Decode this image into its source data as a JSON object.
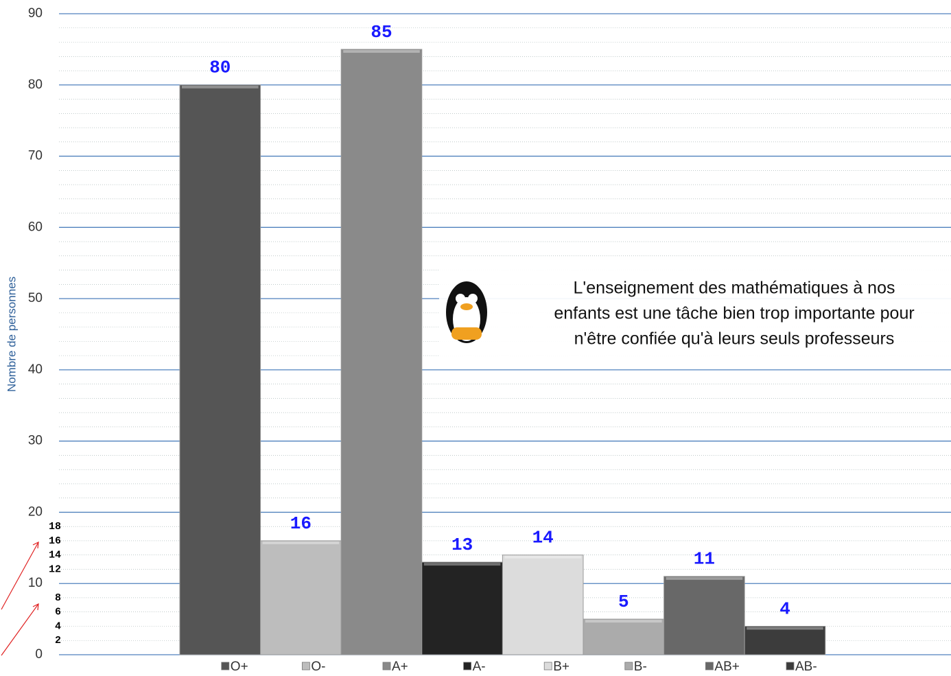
{
  "chart_data": {
    "type": "bar",
    "y_label": "Nombre de personnes",
    "categories": [
      "O+",
      "O-",
      "A+",
      "A-",
      "B+",
      "B-",
      "AB+",
      "AB-"
    ],
    "values": [
      80,
      16,
      85,
      13,
      14,
      5,
      11,
      4
    ],
    "colors": [
      "#555555",
      "#bdbdbd",
      "#8a8a8a",
      "#232323",
      "#dcdcdc",
      "#ababab",
      "#686868",
      "#3c3c3c"
    ],
    "ylim": [
      0,
      90
    ],
    "yticks": [
      0,
      10,
      20,
      30,
      40,
      50,
      60,
      70,
      80,
      90
    ],
    "minor_yticks": [
      2,
      4,
      6,
      8,
      12,
      14,
      16,
      18
    ],
    "grid": true,
    "legend": "bottom",
    "watermark_text": [
      "L'enseignement des mathématiques à nos",
      "enfants est une tâche bien trop importante pour",
      "n'être confiée qu'à leurs seuls professeurs"
    ]
  }
}
